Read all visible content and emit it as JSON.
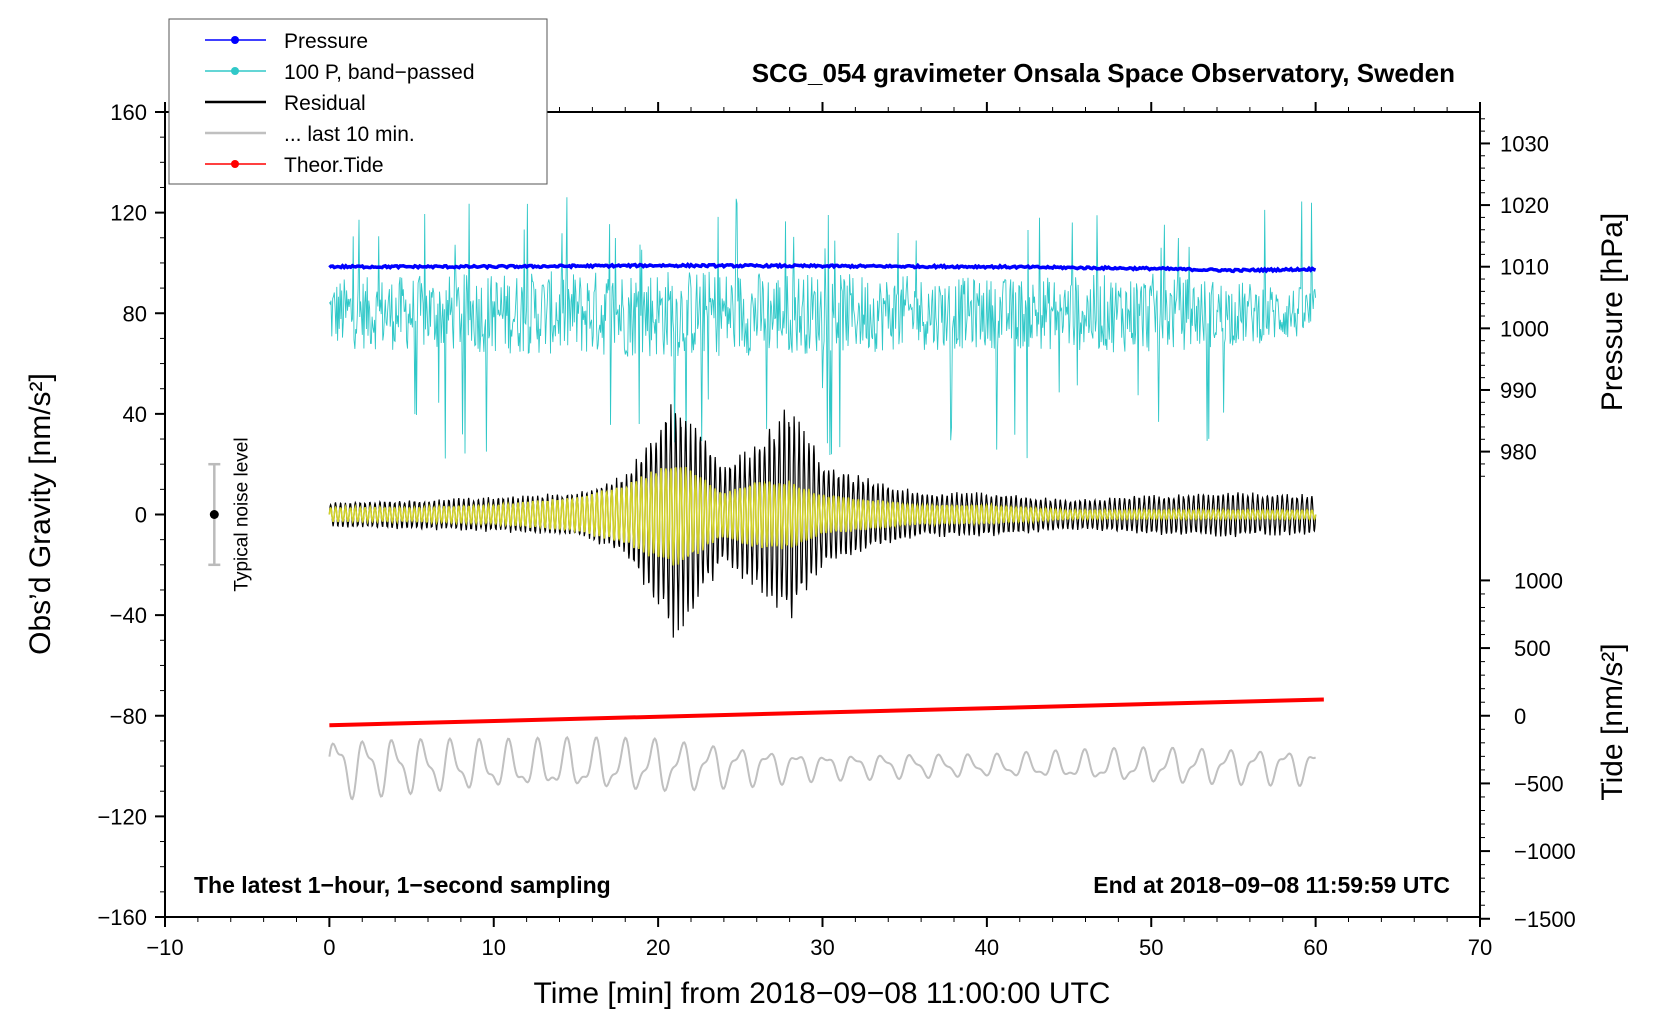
{
  "chart_data": {
    "type": "line",
    "title": "SCG_054 gravimeter Onsala Space Observatory, Sweden",
    "xlabel": "Time [min] from 2018−09−08 11:00:00 UTC",
    "ylabel_left": "Obs’d Gravity [nm/s²]",
    "ylabel_right_top": "Pressure [hPa]",
    "ylabel_right_bottom": "Tide [nm/s²]",
    "xlim": [
      -10,
      70
    ],
    "ylim_left": [
      -160,
      160
    ],
    "x_ticks": [
      "−10",
      "0",
      "10",
      "20",
      "30",
      "40",
      "50",
      "60",
      "70"
    ],
    "x_tick_values": [
      -10,
      0,
      10,
      20,
      30,
      40,
      50,
      60,
      70
    ],
    "left_ticks": [
      "160",
      "120",
      "80",
      "40",
      "0",
      "−40",
      "−80",
      "−120",
      "−160"
    ],
    "left_tick_values": [
      160,
      120,
      80,
      40,
      0,
      -40,
      -80,
      -120,
      -160
    ],
    "pressure_ticks": [
      "1030",
      "1020",
      "1010",
      "1000",
      "990",
      "980"
    ],
    "pressure_tick_values": [
      1030,
      1020,
      1010,
      1000,
      990,
      980
    ],
    "tide_ticks": [
      "1000",
      "500",
      "0",
      "−500",
      "−1000",
      "−1500"
    ],
    "tide_tick_values": [
      1000,
      500,
      0,
      -500,
      -1000,
      -1500
    ],
    "pressure_to_left": {
      "p_ref": 1010,
      "left_ref": 98.5,
      "left_per_hpa": 2.45
    },
    "tide_to_left": {
      "t_ref": 0,
      "left_ref": -80,
      "left_per_unit": 0.0538
    },
    "legend": [
      {
        "label": "Pressure",
        "color": "#0000ff",
        "marker": true
      },
      {
        "label": "100 P, band−passed",
        "color": "#30c8c8",
        "marker": true
      },
      {
        "label": "Residual",
        "color": "#000000",
        "marker": false
      },
      {
        "label": "... last 10 min.",
        "color": "#c0c0c0",
        "marker": false
      },
      {
        "label": "Theor.Tide",
        "color": "#ff0000",
        "marker": true
      }
    ],
    "noise_level": {
      "label": "Typical noise level",
      "x": -7,
      "center": 0,
      "range": [
        -20,
        20
      ]
    },
    "series": [
      {
        "name": "Pressure",
        "color": "#0000ff",
        "axis": "pressure",
        "x": [
          0,
          10,
          20,
          30,
          40,
          50,
          55,
          60
        ],
        "values": [
          1010.0,
          1010.0,
          1010.2,
          1010.1,
          1010.0,
          1009.7,
          1009.4,
          1009.6
        ]
      },
      {
        "name": "100 P, band-passed",
        "color": "#30c8c8",
        "axis": "left",
        "x_range": [
          0,
          60
        ],
        "mean": 80,
        "envelope_x": [
          0,
          10,
          20,
          30,
          40,
          50,
          60
        ],
        "envelope": [
          14,
          16,
          18,
          16,
          14,
          16,
          10
        ]
      },
      {
        "name": "Residual",
        "color": "#000000",
        "axis": "left",
        "x_range": [
          0,
          60
        ],
        "mean": 0,
        "envelope_x": [
          0,
          5,
          10,
          15,
          18,
          21,
          24,
          26,
          28,
          30,
          33,
          36,
          40,
          45,
          50,
          55,
          60
        ],
        "envelope": [
          5,
          6,
          7,
          9,
          16,
          50,
          20,
          30,
          44,
          22,
          14,
          9,
          9,
          6,
          8,
          9,
          8
        ]
      },
      {
        "name": "Residual (yellow)",
        "color": "#d2d22a",
        "axis": "left",
        "x_range": [
          0,
          60
        ],
        "mean": 0,
        "envelope_x": [
          0,
          5,
          10,
          15,
          18,
          21,
          24,
          26,
          28,
          30,
          33,
          36,
          40,
          45,
          50,
          55,
          60
        ],
        "envelope": [
          3,
          3,
          4,
          7,
          12,
          22,
          9,
          14,
          14,
          8,
          6,
          4,
          4,
          2,
          2,
          2,
          2
        ]
      },
      {
        "name": "... last 10 min.",
        "color": "#c0c0c0",
        "axis": "left",
        "x_range": [
          0,
          60
        ],
        "mean": -100,
        "envelope_x": [
          0,
          10,
          20,
          30,
          40,
          50,
          60
        ],
        "envelope": [
          14,
          11,
          12,
          6,
          5,
          8,
          8
        ]
      },
      {
        "name": "Theor.Tide",
        "color": "#ff0000",
        "axis": "tide",
        "x": [
          0,
          60.5
        ],
        "values": [
          -70,
          120
        ]
      }
    ]
  },
  "corner_left": "The latest 1−hour, 1−second sampling",
  "corner_right": "End at 2018−09−08 11:59:59 UTC"
}
